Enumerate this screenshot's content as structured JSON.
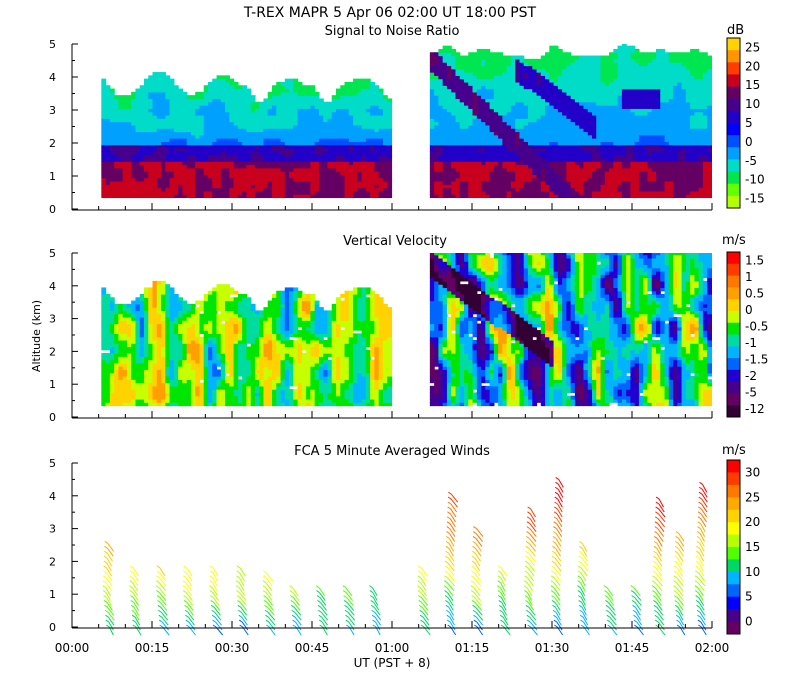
{
  "figure_title": "T-REX  MAPR  5 Apr 06  02:00 UT  18:00  PST",
  "chart_data": [
    {
      "type": "heatmap",
      "title": "Signal to Noise Ratio",
      "ylabel": "",
      "ylim": [
        0,
        5
      ],
      "yticks": [
        "0",
        "1",
        "2",
        "3",
        "4",
        "5"
      ],
      "colorbar": {
        "unit": "dB",
        "labels": [
          "25",
          "20",
          "15",
          "10",
          "5",
          "0",
          "-5",
          "-10",
          "-15"
        ],
        "colors": [
          "#ffd400",
          "#ff9600",
          "#ff3c00",
          "#c8001e",
          "#640064",
          "#46008c",
          "#2300c8",
          "#0000ff",
          "#0050ff",
          "#00a0ff",
          "#00dcc8",
          "#00e650",
          "#64ff00",
          "#b4ff00"
        ]
      },
      "data_gap": [
        "01:00",
        "01:07"
      ]
    },
    {
      "type": "heatmap",
      "title": "Vertical Velocity",
      "ylabel": "Altitude (km)",
      "ylim": [
        0,
        5
      ],
      "yticks": [
        "0",
        "1",
        "2",
        "3",
        "4",
        "5"
      ],
      "colorbar": {
        "unit": "m/s",
        "labels": [
          "1.5",
          "1",
          "0.5",
          "0",
          "-0.5",
          "-1",
          "-1.5",
          "-2",
          "-5",
          "-12"
        ],
        "colors": [
          "#ff0000",
          "#ff3c00",
          "#ff7800",
          "#ffa000",
          "#ffd200",
          "#c8ff00",
          "#00e600",
          "#00dca0",
          "#00b4ff",
          "#0064ff",
          "#2300d2",
          "#46008c",
          "#640064",
          "#320032"
        ]
      },
      "data_gap": [
        "01:00",
        "01:07"
      ]
    },
    {
      "type": "scatter",
      "title": "FCA 5 Minute Averaged Winds",
      "xlabel": "UT  (PST + 8)",
      "ylim": [
        0,
        5
      ],
      "yticks": [
        "0",
        "1",
        "2",
        "3",
        "4",
        "5"
      ],
      "xticks": [
        "00:00",
        "00:15",
        "00:30",
        "00:45",
        "01:00",
        "01:15",
        "01:30",
        "01:45",
        "02:00"
      ],
      "colorbar": {
        "unit": "m/s",
        "labels": [
          "30",
          "25",
          "20",
          "15",
          "10",
          "5",
          "0"
        ],
        "colors": [
          "#ff0000",
          "#ff3c00",
          "#ff7800",
          "#ffaa00",
          "#ffd200",
          "#ffff00",
          "#b4ff00",
          "#50ff00",
          "#00d864",
          "#00b4ff",
          "#0064ff",
          "#0000ff",
          "#46008c",
          "#640064"
        ]
      },
      "profiles": [
        {
          "t": 7,
          "top": 2.6
        },
        {
          "t": 12,
          "top": 1.8
        },
        {
          "t": 17,
          "top": 1.9
        },
        {
          "t": 22,
          "top": 1.8
        },
        {
          "t": 27,
          "top": 1.8
        },
        {
          "t": 32,
          "top": 1.8
        },
        {
          "t": 37,
          "top": 1.7
        },
        {
          "t": 42,
          "top": 1.3
        },
        {
          "t": 47,
          "top": 1.3
        },
        {
          "t": 52,
          "top": 1.3
        },
        {
          "t": 57,
          "top": 1.2
        },
        {
          "t": 66,
          "top": 1.8
        },
        {
          "t": 71,
          "top": 4.1
        },
        {
          "t": 76,
          "top": 3.0
        },
        {
          "t": 81,
          "top": 1.8
        },
        {
          "t": 86,
          "top": 3.6
        },
        {
          "t": 91,
          "top": 4.6
        },
        {
          "t": 96,
          "top": 2.6
        },
        {
          "t": 101,
          "top": 1.2
        },
        {
          "t": 106,
          "top": 1.2
        },
        {
          "t": 110,
          "top": 4.0
        },
        {
          "t": 114,
          "top": 2.9
        },
        {
          "t": 118,
          "top": 4.4
        }
      ]
    }
  ]
}
